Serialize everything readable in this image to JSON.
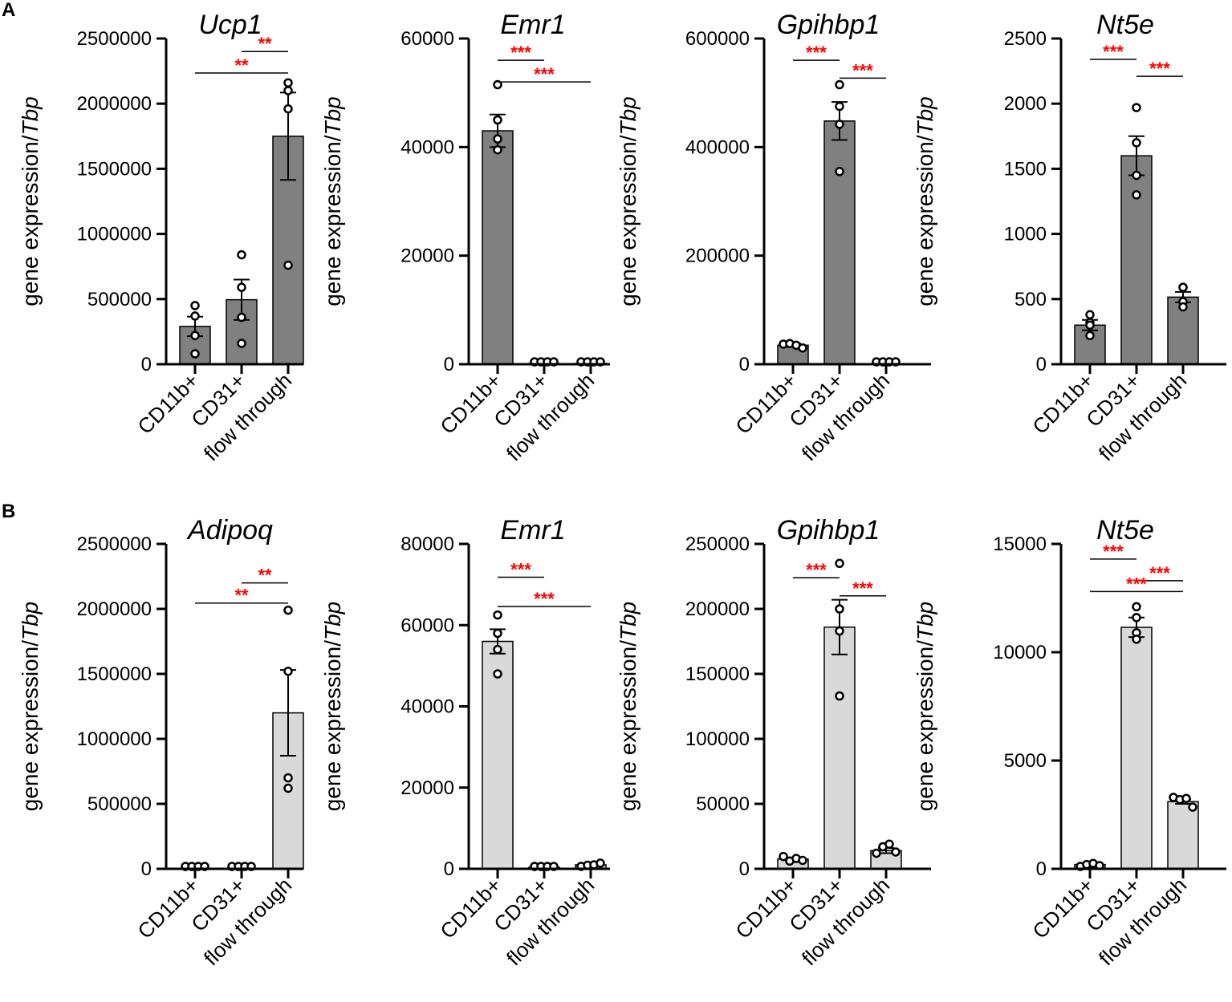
{
  "colors": {
    "bar_dark": "#808080",
    "bar_light": "#d9d9d9",
    "axis": "#000000",
    "significance": "#ff0000"
  },
  "panel_labels": [
    "A",
    "B"
  ],
  "ylabel": {
    "text": "gene expression/",
    "italic": "Tbp"
  },
  "chart_data": [
    {
      "type": "bar",
      "panel": "A",
      "title": "Ucp1",
      "bar_color": "dark",
      "categories": [
        "CD11b+",
        "CD31+",
        "flow through"
      ],
      "values": [
        290000,
        495000,
        1750000
      ],
      "errors": [
        75000,
        155000,
        335000
      ],
      "points": [
        [
          450000,
          370000,
          220000,
          80000
        ],
        [
          840000,
          590000,
          360000,
          160000
        ],
        [
          2160000,
          2100000,
          1960000,
          760000
        ]
      ],
      "ylim": [
        0,
        2500000
      ],
      "yticks": [
        0,
        500000,
        1000000,
        1500000,
        2000000,
        2500000
      ],
      "significance": [
        {
          "from": 1,
          "to": 2,
          "y": 2400000,
          "label": "**"
        },
        {
          "from": 0,
          "to": 2,
          "y": 2235000,
          "label": "**"
        }
      ]
    },
    {
      "type": "bar",
      "panel": "A",
      "title": "Emr1",
      "bar_color": "dark",
      "categories": [
        "CD11b+",
        "CD31+",
        "flow through"
      ],
      "values": [
        43000,
        150,
        150
      ],
      "errors": [
        3000,
        0,
        0
      ],
      "points": [
        [
          51500,
          45000,
          41500,
          39500
        ],
        [
          150,
          150,
          150,
          150
        ],
        [
          150,
          150,
          150,
          150
        ]
      ],
      "ylim": [
        0,
        60000
      ],
      "yticks": [
        0,
        20000,
        40000,
        60000
      ],
      "significance": [
        {
          "from": 0,
          "to": 1,
          "y": 56000,
          "label": "***"
        },
        {
          "from": 0,
          "to": 2,
          "y": 52000,
          "label": "***"
        }
      ]
    },
    {
      "type": "bar",
      "panel": "A",
      "title": "Gpihbp1",
      "bar_color": "dark",
      "categories": [
        "CD11b+",
        "CD31+",
        "flow through"
      ],
      "values": [
        35000,
        448000,
        1000
      ],
      "errors": [
        3000,
        35000,
        0
      ],
      "points": [
        [
          37000,
          38000,
          35000,
          30000
        ],
        [
          515000,
          475000,
          442000,
          355000
        ],
        [
          1000,
          1000,
          1000,
          1000
        ]
      ],
      "ylim": [
        0,
        600000
      ],
      "yticks": [
        0,
        200000,
        400000,
        600000
      ],
      "significance": [
        {
          "from": 0,
          "to": 1,
          "y": 560000,
          "label": "***"
        },
        {
          "from": 1,
          "to": 2,
          "y": 527000,
          "label": "***"
        }
      ]
    },
    {
      "type": "bar",
      "panel": "A",
      "title": "Nt5e",
      "bar_color": "dark",
      "categories": [
        "CD11b+",
        "CD31+",
        "flow through"
      ],
      "values": [
        300,
        1600,
        515
      ],
      "errors": [
        40,
        150,
        40
      ],
      "points": [
        [
          380,
          320,
          300,
          220
        ],
        [
          1970,
          1700,
          1450,
          1300
        ],
        [
          590,
          590,
          480,
          440
        ]
      ],
      "ylim": [
        0,
        2500
      ],
      "yticks": [
        0,
        500,
        1000,
        1500,
        2000,
        2500
      ],
      "significance": [
        {
          "from": 0,
          "to": 1,
          "y": 2340,
          "label": "***"
        },
        {
          "from": 1,
          "to": 2,
          "y": 2210,
          "label": "***"
        }
      ]
    },
    {
      "type": "bar",
      "panel": "B",
      "title": "Adipoq",
      "bar_color": "light",
      "categories": [
        "CD11b+",
        "CD31+",
        "flow through"
      ],
      "values": [
        0,
        0,
        1200000
      ],
      "errors": [
        0,
        0,
        330000
      ],
      "points": [
        [
          0,
          0,
          0,
          0
        ],
        [
          0,
          0,
          0,
          0
        ],
        [
          1990000,
          1520000,
          700000,
          620000
        ]
      ],
      "ylim": [
        0,
        2500000
      ],
      "yticks": [
        0,
        500000,
        1000000,
        1500000,
        2000000,
        2500000
      ],
      "significance": [
        {
          "from": 1,
          "to": 2,
          "y": 2200000,
          "label": "**"
        },
        {
          "from": 0,
          "to": 2,
          "y": 2045000,
          "label": "**"
        }
      ]
    },
    {
      "type": "bar",
      "panel": "B",
      "title": "Emr1",
      "bar_color": "light",
      "categories": [
        "CD11b+",
        "CD31+",
        "flow through"
      ],
      "values": [
        56000,
        400,
        1000
      ],
      "errors": [
        3000,
        0,
        0
      ],
      "points": [
        [
          62500,
          58000,
          54000,
          48000
        ],
        [
          300,
          400,
          400,
          500
        ],
        [
          600,
          900,
          1000,
          1400
        ]
      ],
      "ylim": [
        0,
        80000
      ],
      "yticks": [
        0,
        20000,
        40000,
        60000,
        80000
      ],
      "significance": [
        {
          "from": 0,
          "to": 1,
          "y": 71800,
          "label": "***"
        },
        {
          "from": 0,
          "to": 2,
          "y": 64600,
          "label": "***"
        }
      ]
    },
    {
      "type": "bar",
      "panel": "B",
      "title": "Gpihbp1",
      "bar_color": "light",
      "categories": [
        "CD11b+",
        "CD31+",
        "flow through"
      ],
      "values": [
        7500,
        186000,
        14000
      ],
      "errors": [
        1000,
        21000,
        2000
      ],
      "points": [
        [
          9500,
          6000,
          8000,
          6500
        ],
        [
          235000,
          200000,
          183000,
          133000
        ],
        [
          12000,
          17000,
          19000,
          13000
        ]
      ],
      "ylim": [
        0,
        250000
      ],
      "yticks": [
        0,
        50000,
        100000,
        150000,
        200000,
        250000
      ],
      "significance": [
        {
          "from": 0,
          "to": 1,
          "y": 224000,
          "label": "***"
        },
        {
          "from": 1,
          "to": 2,
          "y": 210000,
          "label": "***"
        }
      ]
    },
    {
      "type": "bar",
      "panel": "B",
      "title": "Nt5e",
      "bar_color": "light",
      "categories": [
        "CD11b+",
        "CD31+",
        "flow through"
      ],
      "values": [
        200,
        11150,
        3100
      ],
      "errors": [
        0,
        450,
        100
      ],
      "points": [
        [
          100,
          200,
          250,
          150
        ],
        [
          12100,
          11600,
          10900,
          10600
        ],
        [
          3300,
          3200,
          3250,
          2850
        ]
      ],
      "ylim": [
        0,
        15000
      ],
      "yticks": [
        0,
        5000,
        10000,
        15000
      ],
      "significance": [
        {
          "from": 0,
          "to": 1,
          "y": 14300,
          "label": "***"
        },
        {
          "from": 1,
          "to": 2,
          "y": 13300,
          "label": "***"
        },
        {
          "from": 0,
          "to": 2,
          "y": 12800,
          "label": "***"
        }
      ]
    }
  ]
}
